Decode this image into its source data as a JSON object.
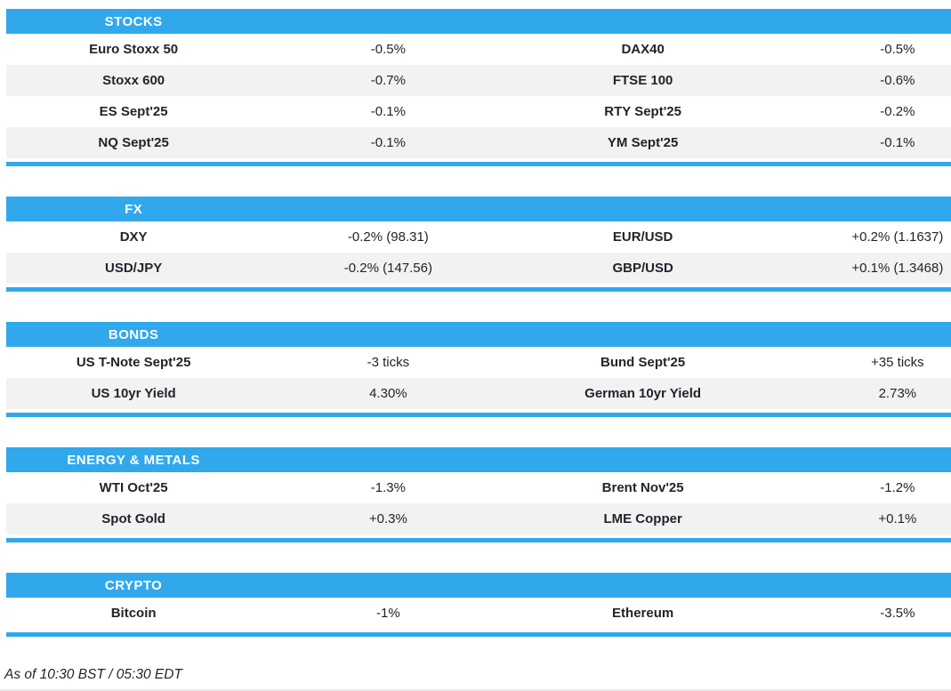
{
  "colors": {
    "accent": "#31A8EC",
    "row_alt": "#F2F2F3",
    "text": "#20252B",
    "header_text": "#FFFFFF",
    "bottom_rule": "#E8E9EA"
  },
  "sections": [
    {
      "title": "STOCKS",
      "rows": [
        {
          "cells": [
            "Euro Stoxx 50",
            "-0.5%",
            "DAX40",
            "-0.5%"
          ]
        },
        {
          "cells": [
            "Stoxx 600",
            "-0.7%",
            "FTSE 100",
            "-0.6%"
          ]
        },
        {
          "cells": [
            "ES Sept'25",
            "-0.1%",
            "RTY Sept'25",
            "-0.2%"
          ]
        },
        {
          "cells": [
            "NQ Sept'25",
            "-0.1%",
            "YM Sept'25",
            "-0.1%"
          ]
        }
      ]
    },
    {
      "title": "FX",
      "rows": [
        {
          "cells": [
            "DXY",
            "-0.2% (98.31)",
            "EUR/USD",
            "+0.2% (1.1637)"
          ]
        },
        {
          "cells": [
            "USD/JPY",
            "-0.2% (147.56)",
            "GBP/USD",
            "+0.1% (1.3468)"
          ]
        }
      ]
    },
    {
      "title": "BONDS",
      "rows": [
        {
          "cells": [
            "US T-Note Sept'25",
            "-3 ticks",
            "Bund Sept'25",
            "+35 ticks"
          ]
        },
        {
          "cells": [
            "US 10yr Yield",
            "4.30%",
            "German 10yr Yield",
            "2.73%"
          ]
        }
      ]
    },
    {
      "title": "ENERGY & METALS",
      "rows": [
        {
          "cells": [
            "WTI Oct'25",
            "-1.3%",
            "Brent Nov'25",
            "-1.2%"
          ]
        },
        {
          "cells": [
            "Spot Gold",
            "+0.3%",
            "LME Copper",
            "+0.1%"
          ]
        }
      ]
    },
    {
      "title": "CRYPTO",
      "rows": [
        {
          "cells": [
            "Bitcoin",
            "-1%",
            "Ethereum",
            "-3.5%"
          ]
        }
      ]
    }
  ],
  "footer": {
    "as_of": "As of 10:30 BST / 05:30 EDT"
  }
}
